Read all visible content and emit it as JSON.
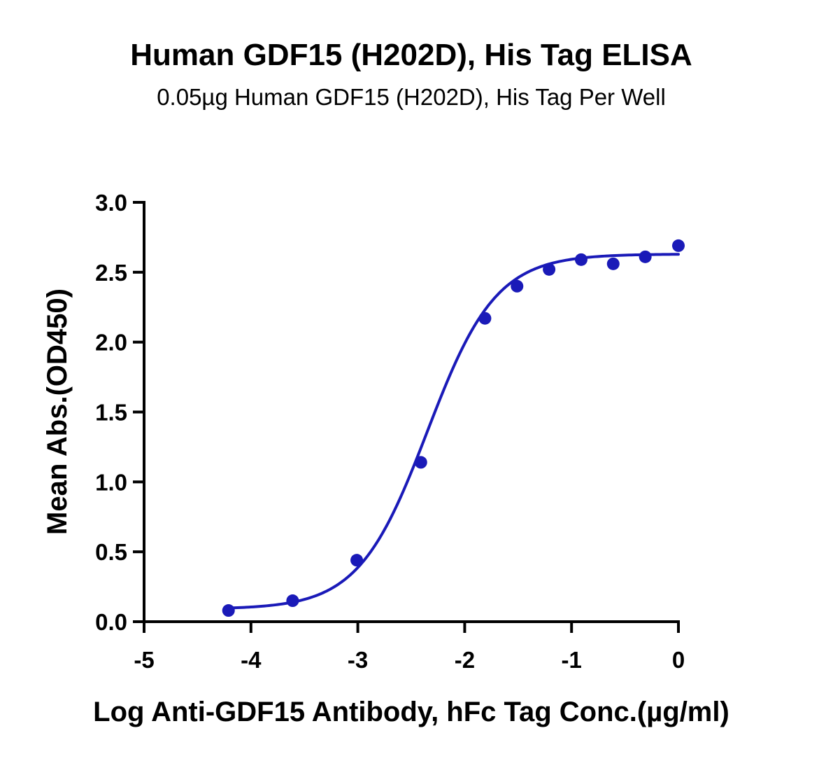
{
  "chart_data": {
    "type": "scatter",
    "title": "Human GDF15 (H202D), His Tag ELISA",
    "subtitle": "0.05µg Human GDF15 (H202D), His Tag Per Well",
    "xlabel": "Log Anti-GDF15 Antibody, hFc Tag Conc.(µg/ml)",
    "ylabel": "Mean Abs.(OD450)",
    "xlim": [
      -5,
      0
    ],
    "ylim": [
      0,
      3.0
    ],
    "x_ticks": [
      -5,
      -4,
      -3,
      -2,
      -1,
      0
    ],
    "x_tick_labels": [
      "-5",
      "-4",
      "-3",
      "-2",
      "-1",
      "0"
    ],
    "y_ticks": [
      0,
      0.5,
      1.0,
      1.5,
      2.0,
      2.5,
      3.0
    ],
    "y_tick_labels": [
      "0.0",
      "0.5",
      "1.0",
      "1.5",
      "2.0",
      "2.5",
      "3.0"
    ],
    "grid": false,
    "legend": "none",
    "color": "#1a1ab8",
    "series": [
      {
        "x": [
          -4.21,
          -3.61,
          -3.01,
          -2.41,
          -1.81,
          -1.51,
          -1.21,
          -0.91,
          -0.61,
          -0.31,
          0.0
        ],
        "y": [
          0.08,
          0.15,
          0.44,
          1.14,
          2.17,
          2.4,
          2.52,
          2.59,
          2.56,
          2.61,
          2.69
        ]
      }
    ],
    "fit": {
      "type": "4PL",
      "bottom": 0.09,
      "top": 2.63,
      "log_ec50": -2.35,
      "hill_slope": 1.35,
      "x_range": [
        -4.21,
        0.0
      ]
    }
  }
}
